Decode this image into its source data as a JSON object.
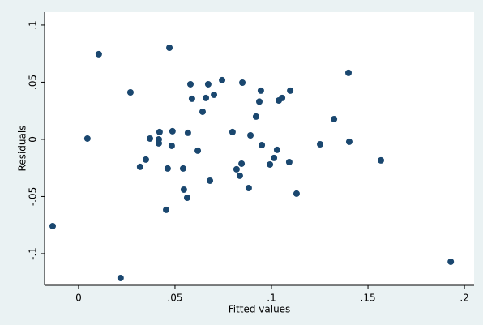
{
  "chart_data": {
    "type": "scatter",
    "x_label": "Fitted values",
    "y_label": "Residuals",
    "color": "#1a476f",
    "x": [
      -0.0134,
      0.0105,
      0.0046,
      0.0218,
      0.0269,
      0.0319,
      0.0349,
      0.037,
      0.0416,
      0.0416,
      0.042,
      0.0454,
      0.0462,
      0.0471,
      0.0483,
      0.0487,
      0.0542,
      0.0546,
      0.0563,
      0.0567,
      0.058,
      0.0588,
      0.0618,
      0.0643,
      0.066,
      0.0672,
      0.0681,
      0.0702,
      0.0744,
      0.0798,
      0.0819,
      0.0836,
      0.0845,
      0.0849,
      0.0882,
      0.0891,
      0.092,
      0.0937,
      0.0945,
      0.095,
      0.0992,
      0.1013,
      0.1029,
      0.1038,
      0.1055,
      0.1092,
      0.1097,
      0.113,
      0.1252,
      0.1324,
      0.1399,
      0.1403,
      0.1567,
      0.1929
    ],
    "values": [
      -0.0759,
      0.0745,
      0.0007,
      -0.1213,
      0.0411,
      -0.0241,
      -0.0177,
      0.0007,
      0,
      -0.0035,
      0.0064,
      -0.0617,
      -0.0255,
      0.0801,
      -0.0057,
      0.0071,
      -0.0255,
      -0.044,
      -0.0511,
      0.0057,
      0.0482,
      0.0355,
      -0.0099,
      0.0241,
      0.0362,
      0.0482,
      -0.0362,
      0.039,
      0.0518,
      0.0064,
      -0.0262,
      -0.0319,
      -0.0213,
      0.0496,
      -0.0426,
      0.0035,
      0.0199,
      0.033,
      0.0426,
      -0.005,
      -0.022,
      -0.0163,
      -0.0092,
      0.034,
      0.0362,
      -0.0199,
      0.0426,
      -0.0475,
      -0.0043,
      0.0177,
      0.0582,
      -0.0021,
      -0.0184,
      -0.1071
    ],
    "xlim": [
      -0.0176,
      0.205
    ],
    "ylim": [
      -0.1277,
      0.1113
    ],
    "xticks": [
      0,
      {
        "value": 0.05,
        "label": ".05"
      },
      {
        "value": 0.1,
        "label": ".1"
      },
      {
        "value": 0.15,
        "label": ".15"
      },
      {
        "value": 0.2,
        "label": ".2"
      }
    ],
    "yticks": [
      {
        "value": -0.1,
        "label": "-.1"
      },
      {
        "value": -0.05,
        "label": "-.05"
      },
      0,
      {
        "value": 0.05,
        "label": ".05"
      },
      {
        "value": 0.1,
        "label": ".1"
      }
    ]
  }
}
